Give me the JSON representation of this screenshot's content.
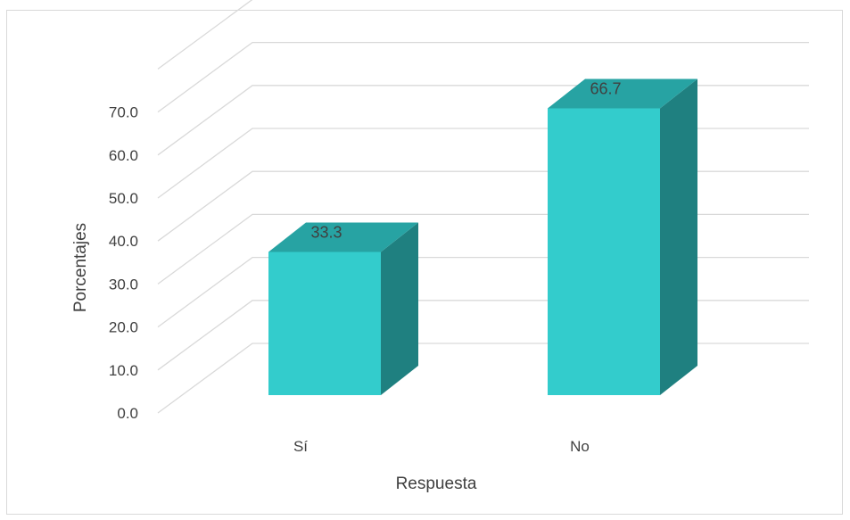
{
  "chart_data": {
    "type": "bar",
    "style": "3d-column",
    "categories": [
      "Sí",
      "No"
    ],
    "values": [
      33.3,
      66.7
    ],
    "data_labels": [
      "33.3",
      "66.7"
    ],
    "title": "",
    "xlabel": "Respuesta",
    "ylabel": "Porcentajes",
    "ylim": [
      0,
      70
    ],
    "yticks": [
      "0.0",
      "10.0",
      "20.0",
      "30.0",
      "40.0",
      "50.0",
      "60.0",
      "70.0"
    ],
    "grid": true,
    "legend": "none",
    "colors": {
      "bar_front": "#33CCCC",
      "bar_top": "#27A3A3",
      "bar_side": "#1F8080",
      "gridline": "#d9d9d9",
      "text": "#404040"
    }
  }
}
